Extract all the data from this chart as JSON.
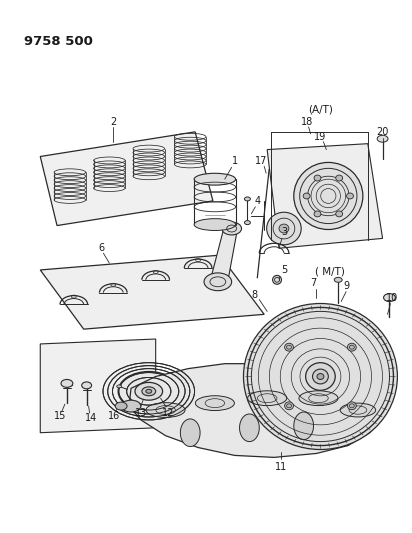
{
  "title": "9758 500",
  "bg_color": "#ffffff",
  "line_color": "#2a2a2a",
  "label_color": "#1a1a1a",
  "title_fontsize": 9.5,
  "annotation_fontsize": 7.0,
  "fig_width": 4.12,
  "fig_height": 5.33,
  "dpi": 100
}
